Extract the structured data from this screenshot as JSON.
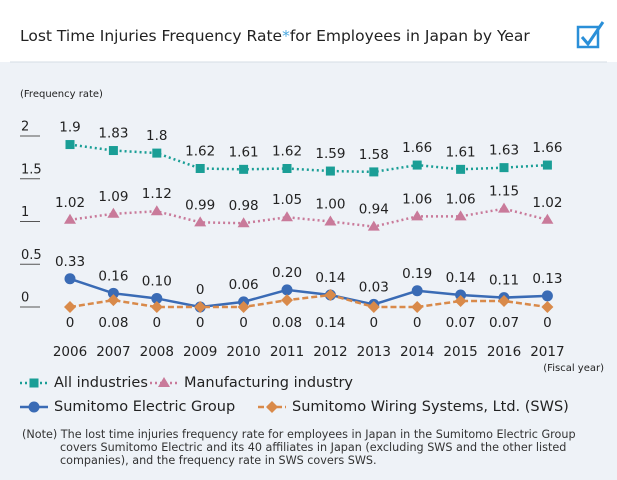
{
  "chart_data": {
    "type": "line",
    "title": "Lost Time Injuries Frequency Rate",
    "title_mark": "*",
    "title_rest": "for Employees in Japan by Year",
    "y_label": "(Frequency rate)",
    "x_label": "(Fiscal year)",
    "categories": [
      "2006",
      "2007",
      "2008",
      "2009",
      "2010",
      "2011",
      "2012",
      "2013",
      "2014",
      "2015",
      "2016",
      "2017"
    ],
    "ylim": [
      0,
      2
    ],
    "yticks": [
      0,
      0.5,
      1,
      1.5,
      2
    ],
    "series": [
      {
        "name": "All industries",
        "color": "#1a9e96",
        "marker": "square",
        "line": "dotted",
        "label_pos": "above",
        "values": [
          1.9,
          1.83,
          1.8,
          1.62,
          1.61,
          1.62,
          1.59,
          1.58,
          1.66,
          1.61,
          1.63,
          1.66
        ],
        "value_labels": [
          "1.9",
          "1.83",
          "1.8",
          "1.62",
          "1.61",
          "1.62",
          "1.59",
          "1.58",
          "1.66",
          "1.61",
          "1.63",
          "1.66"
        ]
      },
      {
        "name": "Manufacturing industry",
        "color": "#c97a9a",
        "marker": "triangle",
        "line": "dotted",
        "label_pos": "above",
        "values": [
          1.02,
          1.09,
          1.12,
          0.99,
          0.98,
          1.05,
          1.0,
          0.94,
          1.06,
          1.06,
          1.15,
          1.02
        ],
        "value_labels": [
          "1.02",
          "1.09",
          "1.12",
          "0.99",
          "0.98",
          "1.05",
          "1.00",
          "0.94",
          "1.06",
          "1.06",
          "1.15",
          "1.02"
        ]
      },
      {
        "name": "Sumitomo Electric Group",
        "color": "#3a6bb5",
        "marker": "circle",
        "line": "solid",
        "label_pos": "above",
        "values": [
          0.33,
          0.16,
          0.1,
          0,
          0.06,
          0.2,
          0.14,
          0.03,
          0.19,
          0.14,
          0.11,
          0.13
        ],
        "value_labels": [
          "0.33",
          "0.16",
          "0.10",
          "0",
          "0.06",
          "0.20",
          "0.14",
          "0.03",
          "0.19",
          "0.14",
          "0.11",
          "0.13"
        ]
      },
      {
        "name": "Sumitomo Wiring Systems, Ltd. (SWS)",
        "color": "#d98a4a",
        "marker": "diamond",
        "line": "dashed",
        "label_pos": "below",
        "values": [
          0,
          0.08,
          0,
          0,
          0,
          0.08,
          0.14,
          0,
          0,
          0.07,
          0.07,
          0
        ],
        "value_labels": [
          "0",
          "0.08",
          "0",
          "0",
          "0",
          "0.08",
          "0.14",
          "0",
          "0",
          "0.07",
          "0.07",
          "0"
        ]
      }
    ],
    "note": "(Note) The lost time injuries frequency rate for employees in Japan in the Sumitomo Electric Group covers Sumitomo Electric and its 40 affiliates in Japan (excluding SWS and the other listed companies), and the frequency rate in SWS covers SWS."
  }
}
